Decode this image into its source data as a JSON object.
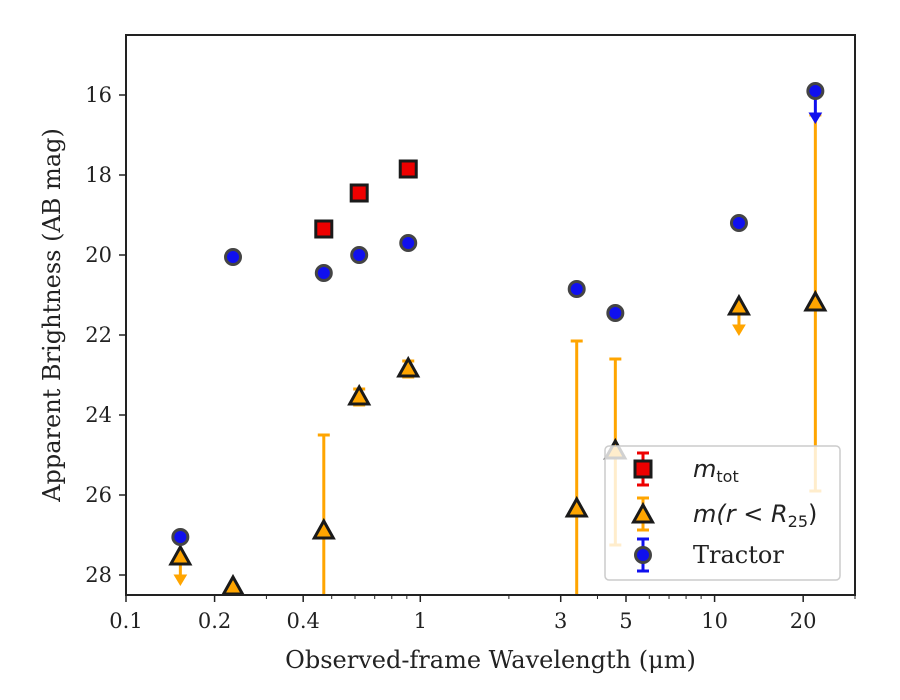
{
  "chart_data": {
    "type": "scatter",
    "title": "",
    "xlabel": "Observed-frame Wavelength (μm)",
    "ylabel": "Apparent Brightness (AB mag)",
    "x_scale": "log",
    "xlim": [
      0.1,
      30
    ],
    "ylim": [
      28.5,
      14.5
    ],
    "y_inverted": true,
    "grid": false,
    "legend_position": "bottom-right",
    "x_ticks": [
      {
        "value": 0.1,
        "label": "0.1"
      },
      {
        "value": 0.2,
        "label": "0.2"
      },
      {
        "value": 0.4,
        "label": "0.4"
      },
      {
        "value": 1,
        "label": "1"
      },
      {
        "value": 3,
        "label": "3"
      },
      {
        "value": 5,
        "label": "5"
      },
      {
        "value": 10,
        "label": "10"
      },
      {
        "value": 20,
        "label": "20"
      }
    ],
    "y_ticks": [
      {
        "value": 16,
        "label": "16"
      },
      {
        "value": 18,
        "label": "18"
      },
      {
        "value": 20,
        "label": "20"
      },
      {
        "value": 22,
        "label": "22"
      },
      {
        "value": 24,
        "label": "24"
      },
      {
        "value": 26,
        "label": "26"
      },
      {
        "value": 28,
        "label": "28"
      }
    ],
    "series": [
      {
        "name": "m_tot",
        "legend_main": "m",
        "legend_sub": "tot",
        "marker": "square",
        "color": "#ee0000",
        "points": [
          {
            "x": 0.47,
            "y": 19.35,
            "err": 0.05
          },
          {
            "x": 0.62,
            "y": 18.45,
            "err": 0.05
          },
          {
            "x": 0.91,
            "y": 17.85,
            "err": 0.05
          }
        ]
      },
      {
        "name": "m(r < R25)",
        "legend_main": "m(r < R",
        "legend_sub": "25",
        "legend_close": ")",
        "marker": "triangle",
        "color": "#ffa500",
        "points": [
          {
            "x": 0.153,
            "y": 27.55,
            "upper_limit": true
          },
          {
            "x": 0.231,
            "y": 28.3
          },
          {
            "x": 0.47,
            "y": 26.9,
            "err_low": 24.5,
            "err_high": 28.6
          },
          {
            "x": 0.62,
            "y": 23.55,
            "err_low": 23.35,
            "err_high": 23.75
          },
          {
            "x": 0.91,
            "y": 22.85,
            "err_low": 22.65,
            "err_high": 23.05
          },
          {
            "x": 3.4,
            "y": 26.35,
            "err_low": 22.15,
            "err_high": 28.6
          },
          {
            "x": 4.6,
            "y": 24.9,
            "err_low": 22.6,
            "err_high": 27.25
          },
          {
            "x": 12.1,
            "y": 21.3,
            "upper_limit": true
          },
          {
            "x": 22.0,
            "y": 21.2,
            "err_low": 16.5,
            "err_high": 25.9
          }
        ]
      },
      {
        "name": "Tractor",
        "marker": "circle",
        "color": "#1010ee",
        "points": [
          {
            "x": 0.153,
            "y": 27.05
          },
          {
            "x": 0.231,
            "y": 20.05
          },
          {
            "x": 0.47,
            "y": 20.45
          },
          {
            "x": 0.62,
            "y": 20.0
          },
          {
            "x": 0.91,
            "y": 19.7
          },
          {
            "x": 3.4,
            "y": 20.85
          },
          {
            "x": 4.6,
            "y": 21.45
          },
          {
            "x": 12.1,
            "y": 19.2
          },
          {
            "x": 22.0,
            "y": 15.9,
            "upper_limit": true
          }
        ]
      }
    ]
  }
}
